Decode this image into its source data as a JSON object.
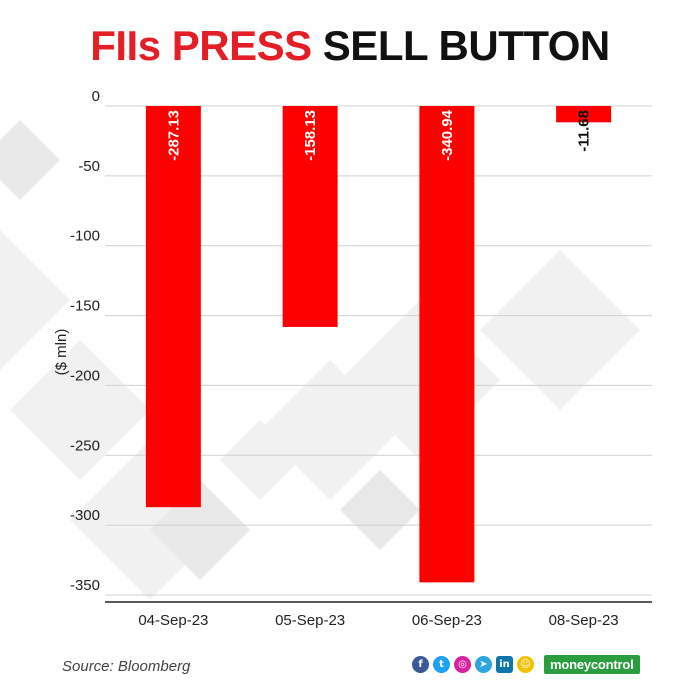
{
  "header": {
    "title_red": "FIIs PRESS",
    "title_black": "SELL BUTTON"
  },
  "colors": {
    "bar": "#ff0000",
    "title_accent": "#e41e26",
    "grid": "#d0d0d0",
    "axis": "#222222",
    "brand": "#2a9d3f"
  },
  "chart_data": {
    "type": "bar",
    "categories": [
      "04-Sep-23",
      "05-Sep-23",
      "06-Sep-23",
      "08-Sep-23"
    ],
    "values": [
      -287.13,
      -158.13,
      -340.94,
      -11.68
    ],
    "data_labels": [
      "-287.13",
      "-158.13",
      "-340.94",
      "-11.68"
    ],
    "ylabel": "($ mln)",
    "ylim": [
      -355,
      0
    ],
    "yticks": [
      0,
      -50,
      -100,
      -150,
      -200,
      -250,
      -300,
      -350
    ],
    "grid": true,
    "legend": "none"
  },
  "footer": {
    "source": "Source: Bloomberg",
    "social_icons": [
      {
        "name": "facebook-icon",
        "glyph": "f",
        "color": "#3b5998"
      },
      {
        "name": "twitter-icon",
        "glyph": "t",
        "color": "#1da1f2"
      },
      {
        "name": "instagram-icon",
        "glyph": "◎",
        "color": "#d6249f"
      },
      {
        "name": "telegram-icon",
        "glyph": "➤",
        "color": "#2ca5e0"
      },
      {
        "name": "linkedin-icon",
        "glyph": "in",
        "color": "#0e76a8"
      },
      {
        "name": "snapchat-icon",
        "glyph": "☺",
        "color": "#f2c200"
      }
    ],
    "brand": "moneycontrol"
  }
}
